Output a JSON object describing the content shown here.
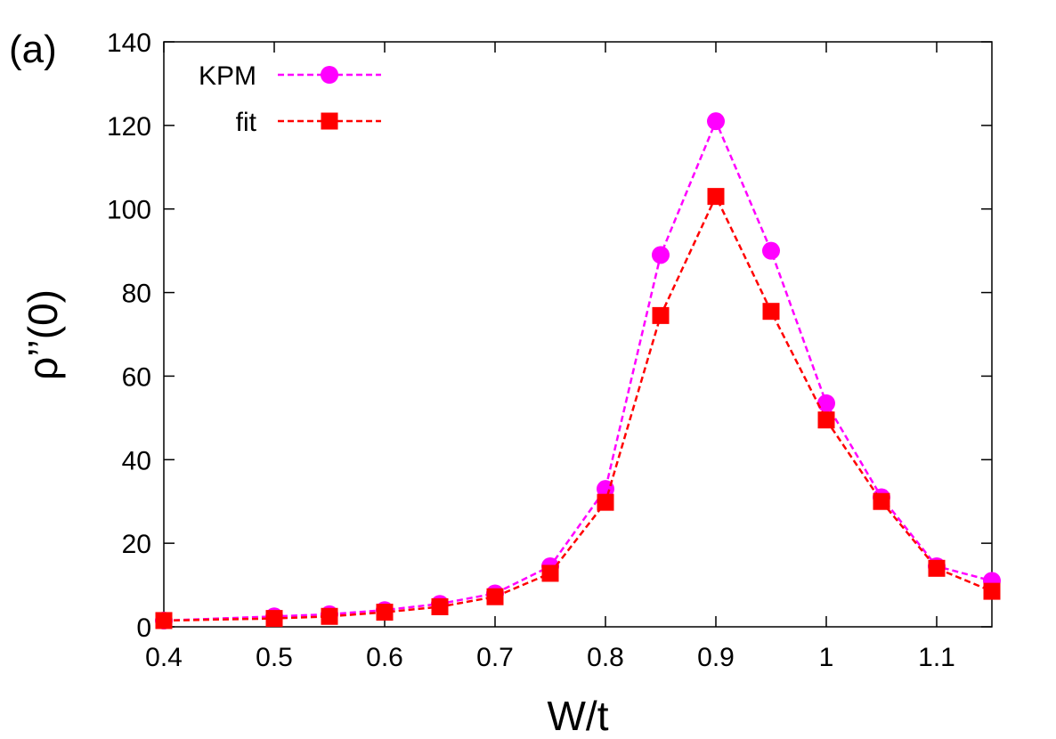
{
  "panel_label": "(a)",
  "chart_data": {
    "type": "line",
    "title": "",
    "xlabel": "W/t",
    "ylabel": "ρ’’(0)",
    "xlim": [
      0.4,
      1.15
    ],
    "ylim": [
      0,
      140
    ],
    "x_ticks": [
      "0.4",
      "0.5",
      "0.6",
      "0.7",
      "0.8",
      "0.9",
      "1",
      "1.1"
    ],
    "x_tick_values": [
      0.4,
      0.5,
      0.6,
      0.7,
      0.8,
      0.9,
      1.0,
      1.1
    ],
    "y_ticks": [
      "0",
      "20",
      "40",
      "60",
      "80",
      "100",
      "120",
      "140"
    ],
    "y_tick_values": [
      0,
      20,
      40,
      60,
      80,
      100,
      120,
      140
    ],
    "grid": false,
    "legend_position": "top-left",
    "series": [
      {
        "name": "KPM",
        "color": "#ff00ff",
        "marker": "circle",
        "line_style": "dashed",
        "x": [
          0.4,
          0.5,
          0.55,
          0.6,
          0.65,
          0.7,
          0.75,
          0.8,
          0.85,
          0.9,
          0.95,
          1.0,
          1.05,
          1.1,
          1.15
        ],
        "values": [
          1.5,
          2.5,
          3.0,
          4.0,
          5.5,
          8.0,
          14.5,
          33.0,
          89.0,
          121.0,
          90.0,
          53.5,
          31.0,
          14.5,
          11.0
        ]
      },
      {
        "name": "fit",
        "color": "#ff0000",
        "marker": "square",
        "line_style": "dashed",
        "x": [
          0.4,
          0.5,
          0.55,
          0.6,
          0.65,
          0.7,
          0.75,
          0.8,
          0.85,
          0.9,
          0.95,
          1.0,
          1.05,
          1.1,
          1.15
        ],
        "values": [
          1.5,
          2.0,
          2.5,
          3.5,
          4.8,
          7.2,
          12.8,
          29.8,
          74.5,
          103.0,
          75.5,
          49.5,
          30.0,
          14.0,
          8.5
        ]
      }
    ]
  }
}
